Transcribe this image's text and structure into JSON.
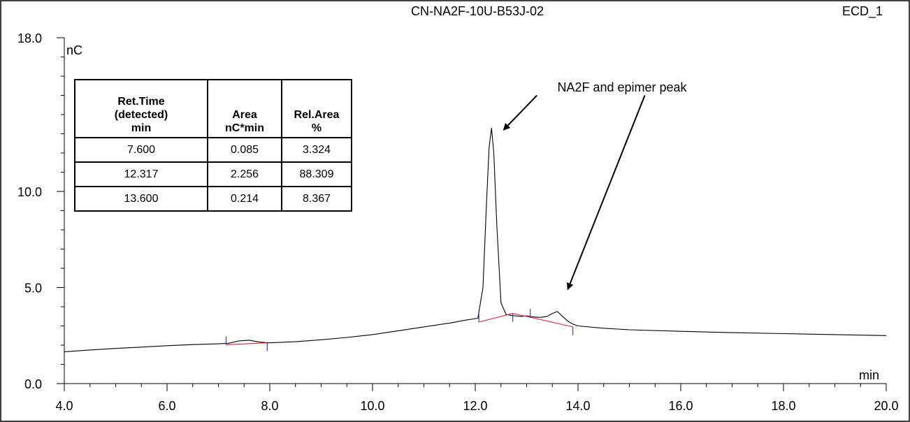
{
  "chart_data": {
    "type": "line",
    "title": "CN-NA2F-10U-B53J-02",
    "detector": "ECD_1",
    "xlabel": "min",
    "ylabel": "nC",
    "xlim": [
      4.0,
      20.0
    ],
    "ylim": [
      0.0,
      18.0
    ],
    "x_ticks": [
      "4.0",
      "6.0",
      "8.0",
      "10.0",
      "12.0",
      "14.0",
      "16.0",
      "18.0",
      "20.0"
    ],
    "y_ticks": [
      "0.0",
      "5.0",
      "10.0",
      "18.0"
    ],
    "y_tick_values": [
      0.0,
      5.0,
      10.0,
      18.0
    ],
    "x_tick_values": [
      4.0,
      6.0,
      8.0,
      10.0,
      12.0,
      14.0,
      16.0,
      18.0,
      20.0
    ],
    "series": [
      {
        "x": [
          4.0,
          4.5,
          5.0,
          5.5,
          6.0,
          6.5,
          7.0,
          7.2,
          7.4,
          7.6,
          7.8,
          8.0,
          8.5,
          9.0,
          9.5,
          10.0,
          10.5,
          11.0,
          11.5,
          11.8,
          12.05,
          12.15,
          12.22,
          12.27,
          12.317,
          12.36,
          12.42,
          12.5,
          12.6,
          12.7,
          12.8,
          12.9,
          13.0,
          13.1,
          13.2,
          13.3,
          13.4,
          13.5,
          13.6,
          13.7,
          13.8,
          13.9,
          14.0,
          14.5,
          15.0,
          16.0,
          17.0,
          18.0,
          19.0,
          20.0
        ],
        "y": [
          1.65,
          1.75,
          1.83,
          1.9,
          1.97,
          2.03,
          2.07,
          2.1,
          2.22,
          2.26,
          2.16,
          2.12,
          2.18,
          2.28,
          2.4,
          2.55,
          2.75,
          2.95,
          3.15,
          3.3,
          3.4,
          5.0,
          9.5,
          12.3,
          13.3,
          12.0,
          8.2,
          4.2,
          3.6,
          3.55,
          3.52,
          3.5,
          3.52,
          3.48,
          3.45,
          3.45,
          3.5,
          3.65,
          3.75,
          3.5,
          3.25,
          3.1,
          3.0,
          2.88,
          2.8,
          2.72,
          2.65,
          2.6,
          2.55,
          2.5
        ]
      }
    ],
    "baselines": [
      {
        "x": [
          7.15,
          7.95
        ],
        "y": [
          2.02,
          2.12
        ]
      },
      {
        "x": [
          12.07,
          12.73,
          13.07,
          13.9
        ],
        "y": [
          3.2,
          3.65,
          3.45,
          2.95
        ]
      }
    ],
    "peak_markers": [
      7.15,
      7.95,
      12.07,
      12.73,
      13.07,
      13.9
    ],
    "annotation": {
      "text": "NA2F and epimer peak",
      "arrows": [
        {
          "from": [
            13.2,
            15.0
          ],
          "to": [
            12.55,
            13.2
          ]
        },
        {
          "from": [
            15.3,
            15.0
          ],
          "to": [
            13.8,
            4.9
          ]
        }
      ]
    },
    "table": {
      "headers": [
        [
          "Ret.Time",
          "(detected)",
          "min"
        ],
        [
          "Area",
          "nC*min"
        ],
        [
          "Rel.Area",
          "%"
        ]
      ],
      "rows": [
        [
          "7.600",
          "0.085",
          "3.324"
        ],
        [
          "12.317",
          "2.256",
          "88.309"
        ],
        [
          "13.600",
          "0.214",
          "8.367"
        ]
      ]
    },
    "grid": false,
    "colors": {
      "trace": "#000000",
      "baseline": "#e8212e",
      "marker": "#3b3bd8",
      "frame": "#000000"
    }
  }
}
